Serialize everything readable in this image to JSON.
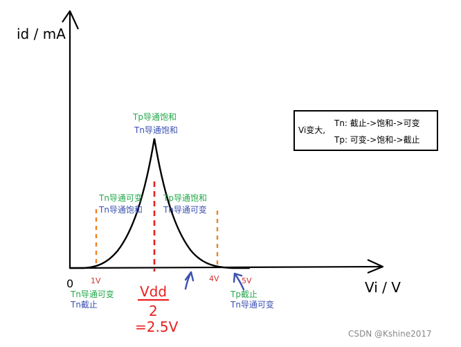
{
  "axes": {
    "y_label": "id / mA",
    "x_label": "Vi / V",
    "origin": "0"
  },
  "ticks": {
    "v1": "1V",
    "v4": "4V",
    "v5": "5V"
  },
  "peak": {
    "line1": "Tp导通饱和",
    "line2": "Tn导通饱和"
  },
  "left_region": {
    "line1": "Tn导通可变",
    "line2": "Tn导通饱和"
  },
  "right_region": {
    "line1": "Tp导通饱和",
    "line2": "Tn导通可变"
  },
  "below_left": {
    "line1": "Tn导通可变",
    "line2": "Tn截止"
  },
  "below_right": {
    "line1": "Tp截止",
    "line2": "Tn导通可变"
  },
  "vdd": {
    "numerator": "Vdd",
    "denominator": "2",
    "value": "=2.5V"
  },
  "legend": {
    "prefix": "Vi变大,",
    "tn": "Tn: 截止->饱和->可变",
    "tp": "Tp: 可变->饱和->截止"
  },
  "watermark": "CSDN @Kshine2017",
  "colors": {
    "green": "#22a84a",
    "blue": "#3a4fb0",
    "red": "#e8201e",
    "orange": "#f08020",
    "black": "#000000",
    "gray": "#888888"
  }
}
